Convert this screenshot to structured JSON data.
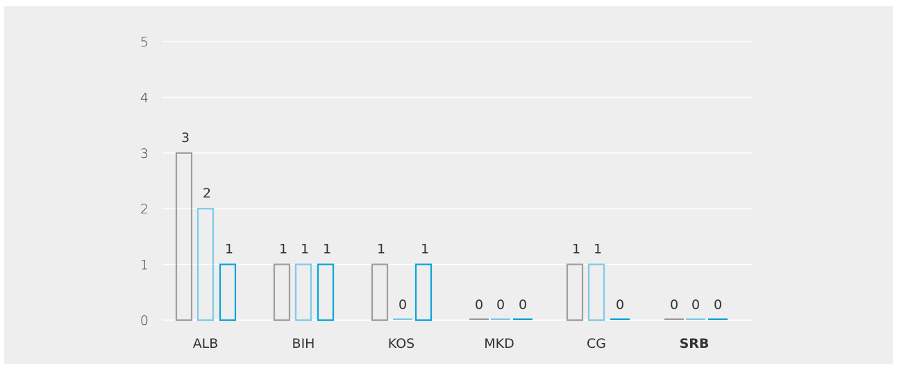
{
  "chart_data": {
    "type": "bar",
    "categories": [
      "ALB",
      "BIH",
      "KOS",
      "MKD",
      "CG",
      "SRB"
    ],
    "highlight_category": "SRB",
    "series": [
      {
        "values": [
          3,
          1,
          1,
          0,
          1,
          0
        ],
        "color": "#9e9e9e"
      },
      {
        "values": [
          2,
          1,
          0,
          0,
          1,
          0
        ],
        "color": "#7ecbe8"
      },
      {
        "values": [
          1,
          1,
          1,
          0,
          0,
          0
        ],
        "color": "#0aa5d8"
      }
    ],
    "ylim": [
      0,
      5
    ],
    "yticks": [
      0,
      1,
      2,
      3,
      4,
      5
    ],
    "grid": true,
    "bar_style": "outline",
    "highlight_color": "#0aa5d8",
    "background": "#eeeeee"
  }
}
